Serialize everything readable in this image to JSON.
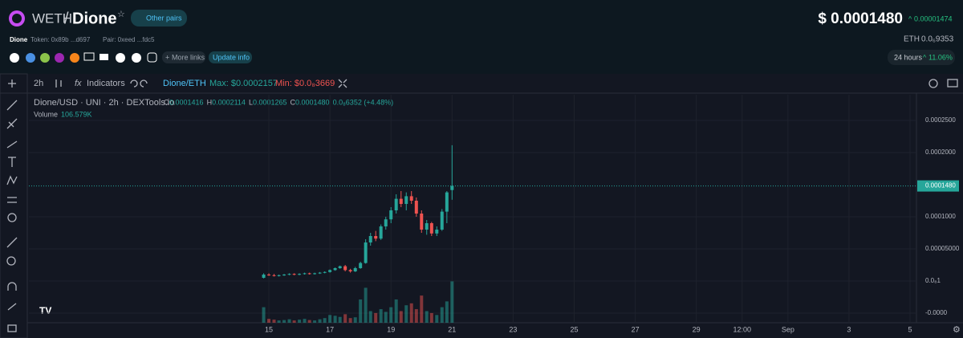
{
  "header": {
    "base": "WETH",
    "sep": "/",
    "name": "Dione",
    "other_pairs": "Other pairs",
    "price": "$ 0.0001480",
    "price_change": "0.00001474",
    "token_name": "Dione",
    "token": "Token: 0x89b ...d697",
    "pair": "Pair: 0xeed ...fdc5",
    "eth_label": "ETH",
    "eth_price": "0.0₆9353",
    "more_links": "More links",
    "update_info": "Update info",
    "period": "24 hours",
    "period_change": "11.06%"
  },
  "toolbar": {
    "interval": "2h",
    "indicators": "Indicators",
    "pair": "Dione/ETH",
    "max": "Max: $0.0002157",
    "min": "Min: $0.0₈3669"
  },
  "chart_data": {
    "type": "candlestick",
    "title": "Dione/USD · UNI · 2h · DEXTools.io",
    "legend_values": [
      {
        "label": "O",
        "value": "0.0001416"
      },
      {
        "label": "H",
        "value": "0.0002114"
      },
      {
        "label": "L",
        "value": "0.0001265"
      },
      {
        "label": "C",
        "value": "0.0001480"
      },
      {
        "label": "",
        "value": "0.0₈6352 (+4.48%)"
      }
    ],
    "volume_label": "Volume",
    "volume_value": "106.579K",
    "up_color": "#26a69a",
    "down_color": "#ef5350",
    "x": [
      14.83,
      15.0,
      15.17,
      15.33,
      15.5,
      15.67,
      15.83,
      16.0,
      16.17,
      16.33,
      16.5,
      16.67,
      16.83,
      17.0,
      17.17,
      17.33,
      17.5,
      17.67,
      17.83,
      18.0,
      18.17,
      18.33,
      18.5,
      18.67,
      18.83,
      19.0,
      19.17,
      19.33,
      19.5,
      19.67,
      19.83,
      20.0,
      20.17,
      20.33,
      20.5,
      20.67,
      20.83,
      21.0
    ],
    "ohlc": [
      [
        5e-06,
        1.2e-05,
        4e-06,
        1e-05
      ],
      [
        1e-05,
        1.2e-05,
        8e-06,
        9e-06
      ],
      [
        9e-06,
        1.1e-05,
        7e-06,
        8e-06
      ],
      [
        8e-06,
        1e-05,
        7e-06,
        9e-06
      ],
      [
        9e-06,
        1.1e-05,
        8e-06,
        1e-05
      ],
      [
        1e-05,
        1.2e-05,
        9e-06,
        1.1e-05
      ],
      [
        1.1e-05,
        1.2e-05,
        9e-06,
        1e-05
      ],
      [
        1e-05,
        1.2e-05,
        9e-06,
        1.1e-05
      ],
      [
        1.1e-05,
        1.3e-05,
        1e-05,
        1.2e-05
      ],
      [
        1.2e-05,
        1.3e-05,
        1e-05,
        1.1e-05
      ],
      [
        1.1e-05,
        1.3e-05,
        1e-05,
        1.2e-05
      ],
      [
        1.2e-05,
        1.4e-05,
        1.1e-05,
        1.3e-05
      ],
      [
        1.3e-05,
        1.5e-05,
        1.2e-05,
        1.4e-05
      ],
      [
        1.4e-05,
        1.8e-05,
        1.3e-05,
        1.7e-05
      ],
      [
        1.7e-05,
        2.1e-05,
        1.6e-05,
        2e-05
      ],
      [
        2e-05,
        2.4e-05,
        1.9e-05,
        2.3e-05
      ],
      [
        2.3e-05,
        2.5e-05,
        1.5e-05,
        1.7e-05
      ],
      [
        1.7e-05,
        1.9e-05,
        1.3e-05,
        1.5e-05
      ],
      [
        1.5e-05,
        2.2e-05,
        1.4e-05,
        2e-05
      ],
      [
        2e-05,
        3e-05,
        1.9e-05,
        2.8e-05
      ],
      [
        2.8e-05,
        6.5e-05,
        2.7e-05,
        6e-05
      ],
      [
        6e-05,
        7.5e-05,
        5.5e-05,
        7e-05
      ],
      [
        7e-05,
        7.8e-05,
        6.2e-05,
        6.6e-05
      ],
      [
        6.6e-05,
        8.8e-05,
        6.4e-05,
        8.5e-05
      ],
      [
        8.5e-05,
        0.0001,
        8e-05,
        9.6e-05
      ],
      [
        9.6e-05,
        0.000115,
        9e-05,
        0.00011
      ],
      [
        0.00011,
        0.000135,
        0.000105,
        0.000128
      ],
      [
        0.000128,
        0.00014,
        0.000115,
        0.00012
      ],
      [
        0.00012,
        0.000138,
        0.00011,
        0.000132
      ],
      [
        0.000132,
        0.00014,
        0.00012,
        0.000125
      ],
      [
        0.000125,
        0.00013,
        0.0001,
        0.000105
      ],
      [
        0.000105,
        0.00011,
        7.5e-05,
        8e-05
      ],
      [
        8e-05,
        9.5e-05,
        7.2e-05,
        9e-05
      ],
      [
        9e-05,
        9.2e-05,
        7e-05,
        7.4e-05
      ],
      [
        7.4e-05,
        8.5e-05,
        7e-05,
        8e-05
      ],
      [
        8e-05,
        0.000112,
        7.8e-05,
        0.000108
      ],
      [
        0.000108,
        0.00014,
        9e-05,
        0.000138
      ],
      [
        0.0001416,
        0.0002114,
        0.0001265,
        0.000148
      ]
    ],
    "volume": [
      40,
      10,
      8,
      6,
      7,
      9,
      6,
      8,
      10,
      7,
      6,
      9,
      12,
      20,
      18,
      15,
      22,
      12,
      14,
      60,
      90,
      30,
      25,
      35,
      28,
      40,
      60,
      30,
      45,
      50,
      35,
      70,
      30,
      25,
      20,
      40,
      55,
      106.579
    ],
    "vlim": [
      0,
      155
    ],
    "xlim": [
      7.14,
      36.21
    ],
    "xticks": [
      15,
      17,
      19,
      21,
      23,
      25,
      27,
      29,
      {
        "value": 30.5,
        "label": "12:00"
      },
      {
        "value": 32,
        "label": "Sep"
      },
      {
        "value": 34,
        "label": "3"
      },
      {
        "value": 36,
        "label": "5"
      }
    ],
    "ylim": [
      -6.5e-05,
      0.00029
    ],
    "yticks": [
      {
        "value": 0.00025,
        "label": "0.0002500"
      },
      {
        "value": 0.0002,
        "label": "0.0002000"
      },
      {
        "value": 0.0001,
        "label": "0.0001000"
      },
      {
        "value": 5e-05,
        "label": "0.00005000"
      },
      {
        "value": 0,
        "label": "0.0₈1"
      },
      {
        "value": -5e-05,
        "label": "-0.0000"
      }
    ],
    "last_price": {
      "value": 0.000148,
      "label": "0.0001480"
    },
    "grid": true
  }
}
